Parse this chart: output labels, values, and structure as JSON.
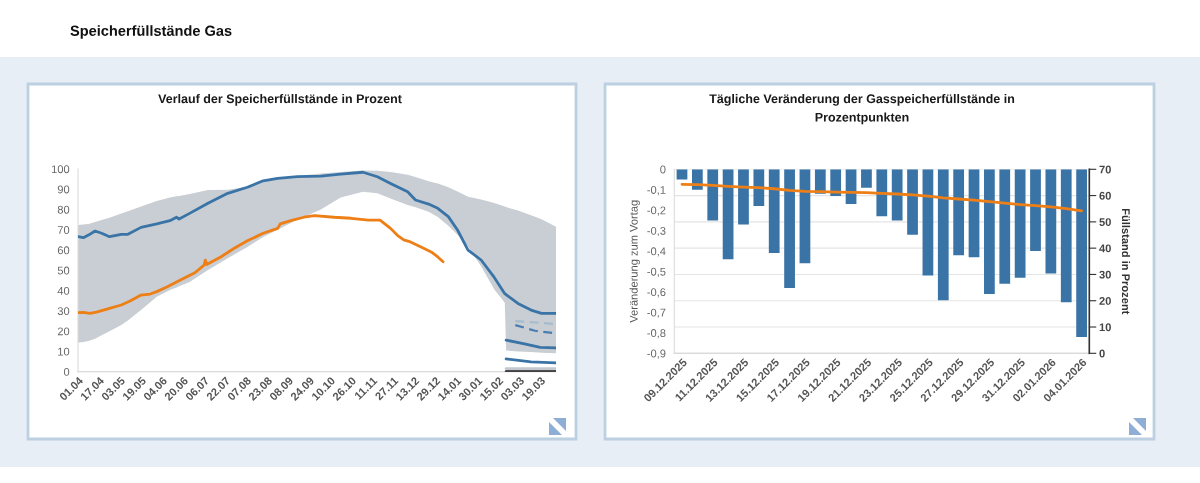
{
  "chart_data": [
    {
      "type": "line",
      "title": "Verlauf der Speicherfüllstände in Prozent",
      "annotations": [
        "Speicherfüllstände Gas"
      ],
      "xlim": [
        "2025-04-01",
        "2026-03-31"
      ],
      "xticks": [
        {
          "value": "2025-04-01",
          "label": "01.04"
        },
        {
          "value": "2025-04-17",
          "label": "17.04"
        },
        {
          "value": "2025-05-03",
          "label": "03.05"
        },
        {
          "value": "2025-05-19",
          "label": "19.05"
        },
        {
          "value": "2025-06-04",
          "label": "04.06"
        },
        {
          "value": "2025-06-20",
          "label": "20.06"
        },
        {
          "value": "2025-07-06",
          "label": "06.07"
        },
        {
          "value": "2025-07-22",
          "label": "22.07"
        },
        {
          "value": "2025-08-07",
          "label": "07.08"
        },
        {
          "value": "2025-08-23",
          "label": "23.08"
        },
        {
          "value": "2025-09-08",
          "label": "08.09"
        },
        {
          "value": "2025-09-24",
          "label": "24.09"
        },
        {
          "value": "2025-10-10",
          "label": "10.10"
        },
        {
          "value": "2025-10-26",
          "label": "26.10"
        },
        {
          "value": "2025-11-11",
          "label": "11.11"
        },
        {
          "value": "2025-11-27",
          "label": "27.11"
        },
        {
          "value": "2025-12-13",
          "label": "13.12"
        },
        {
          "value": "2025-12-29",
          "label": "29.12"
        },
        {
          "value": "2026-01-14",
          "label": "14.01"
        },
        {
          "value": "2026-01-30",
          "label": "30.01"
        },
        {
          "value": "2026-02-15",
          "label": "15.02"
        },
        {
          "value": "2026-03-03",
          "label": "03.03"
        },
        {
          "value": "2026-03-19",
          "label": "19.03"
        }
      ],
      "ylim": [
        0,
        100
      ],
      "yticks": [
        0,
        10,
        20,
        30,
        40,
        50,
        60,
        70,
        80,
        90,
        100
      ],
      "series": [
        {
          "color": "#3a74a7",
          "x": [
            "2025-04-01",
            "2025-04-05",
            "2025-04-09",
            "2025-04-14",
            "2025-04-19",
            "2025-04-25",
            "2025-05-04",
            "2025-05-09",
            "2025-05-19",
            "2025-05-31",
            "2025-06-10",
            "2025-06-15",
            "2025-06-17",
            "2025-06-25",
            "2025-07-09",
            "2025-07-24",
            "2025-08-08",
            "2025-08-20",
            "2025-08-31",
            "2025-09-15",
            "2025-10-03",
            "2025-10-18",
            "2025-11-04",
            "2025-11-15",
            "2025-11-25",
            "2025-12-08",
            "2025-12-14",
            "2025-12-24",
            "2025-12-31",
            "2026-01-08",
            "2026-01-15",
            "2026-01-23",
            "2026-02-02",
            "2026-02-12",
            "2026-02-20",
            "2026-02-21",
            "2026-02-22",
            "2026-03-02",
            "2026-03-12",
            "2026-03-20",
            "2026-03-31"
          ],
          "values": [
            66.6,
            66.1,
            67.4,
            69.4,
            68.3,
            66.6,
            67.8,
            67.8,
            71.2,
            72.9,
            74.5,
            76.2,
            75.3,
            78.1,
            83.1,
            88.0,
            91.0,
            94.2,
            95.4,
            96.2,
            96.5,
            97.5,
            98.4,
            96.2,
            92.9,
            88.8,
            84.7,
            82.7,
            80.6,
            76.5,
            69.9,
            60.0,
            55.1,
            46.5,
            38.5,
            38.0,
            37.5,
            33.7,
            30.4,
            28.8,
            28.8
          ],
          "lower": [
            14.3,
            14.7,
            15.1,
            16.2,
            18.0,
            19.9,
            23.0,
            25.3,
            30.4,
            37.0,
            40.3,
            41.6,
            42.1,
            44.2,
            50.2,
            56.0,
            61.5,
            66.5,
            70.0,
            75.0,
            80.0,
            86.0,
            88.8,
            88.0,
            85.5,
            82.2,
            81.1,
            78.9,
            76.3,
            72.0,
            67.6,
            61.7,
            52.0,
            40.5,
            34.0,
            10.4,
            10.4,
            10.0,
            9.7,
            9.4,
            9.1
          ],
          "upper": [
            72.4,
            72.6,
            72.9,
            73.8,
            74.8,
            76.0,
            78.0,
            79.2,
            81.5,
            84.2,
            85.9,
            86.5,
            86.7,
            87.7,
            89.6,
            89.8,
            91.3,
            93.8,
            95.1,
            96.6,
            97.8,
            98.5,
            99.2,
            99.1,
            98.5,
            97.2,
            96.0,
            94.0,
            92.8,
            91.0,
            88.9,
            86.3,
            85.0,
            83.2,
            81.5,
            81.3,
            81.0,
            79.5,
            77.2,
            75.2,
            71.5
          ]
        },
        {
          "color": "#c3c9ce",
          "x": [
            "2026-02-21",
            "2026-03-31"
          ],
          "values": [
            1.5,
            1.5
          ]
        },
        {
          "color": "#111111",
          "x": [
            "2026-02-21",
            "2026-03-31"
          ],
          "values": [
            0,
            0
          ]
        },
        {
          "color": "#ee7f16",
          "x": [
            "2025-04-01",
            "2025-04-05",
            "2025-04-10",
            "2025-04-15",
            "2025-04-25",
            "2025-05-04",
            "2025-05-11",
            "2025-05-19",
            "2025-05-26",
            "2025-05-31",
            "2025-06-08",
            "2025-06-18",
            "2025-06-29",
            "2025-07-06",
            "2025-07-07",
            "2025-07-08",
            "2025-07-19",
            "2025-07-29",
            "2025-08-08",
            "2025-08-20",
            "2025-08-31",
            "2025-09-02",
            "2025-09-10",
            "2025-09-20",
            "2025-09-28",
            "2025-10-13",
            "2025-10-26",
            "2025-11-08",
            "2025-11-17",
            "2025-11-25",
            "2025-11-30",
            "2025-12-05",
            "2025-12-09",
            "2025-12-19",
            "2025-12-26",
            "2025-12-31",
            "2026-01-04"
          ],
          "values": [
            29.1,
            29.3,
            28.8,
            29.4,
            31.2,
            32.9,
            35.0,
            37.8,
            38.3,
            39.5,
            41.9,
            45.2,
            48.8,
            52.6,
            55.0,
            52.9,
            56.7,
            60.9,
            64.6,
            68.3,
            70.7,
            72.9,
            74.5,
            76.2,
            77.0,
            76.2,
            75.7,
            74.8,
            74.8,
            70.7,
            67.4,
            65.0,
            64.3,
            61.3,
            59.1,
            56.6,
            54.2
          ]
        },
        {
          "color": "#a7bbcd",
          "line_style": "dashed",
          "x": [
            "2026-02-28",
            "2026-03-31"
          ],
          "values": [
            25.0,
            23.5
          ]
        },
        {
          "color": "#4a7eb0",
          "line_style": "dashed",
          "x": [
            "2026-02-28",
            "2026-03-15",
            "2026-03-31"
          ],
          "values": [
            23.0,
            20.2,
            18.9
          ]
        },
        {
          "color": "#3a74a7",
          "x": [
            "2026-02-21",
            "2026-03-07",
            "2026-03-19",
            "2026-03-31"
          ],
          "values": [
            15.6,
            13.7,
            12.0,
            11.8
          ]
        },
        {
          "color": "#3a74a7",
          "x": [
            "2026-02-21",
            "2026-03-12",
            "2026-03-31"
          ],
          "values": [
            6.3,
            4.9,
            4.4
          ]
        }
      ]
    },
    {
      "type": "bar",
      "title": "Tägliche Veränderung der Gasspeicherfüllstände in\nProzentpunkten",
      "categories": [
        "09.12.2025",
        null,
        "11.12.2025",
        null,
        "13.12.2025",
        null,
        "15.12.2025",
        null,
        "17.12.2025",
        null,
        "19.12.2025",
        null,
        "21.12.2025",
        null,
        "23.12.2025",
        null,
        "25.12.2025",
        null,
        "27.12.2025",
        null,
        "29.12.2025",
        null,
        "31.12.2025",
        null,
        "02.01.2026",
        null,
        "04.01.2026"
      ],
      "ylabel": "Veränderung zum Vortag",
      "y2label": "Füllstand in Prozent",
      "ylim": [
        -0.9,
        0
      ],
      "yticks": [
        0,
        {
          "value": -0.1,
          "label": "-0,1"
        },
        {
          "value": -0.2,
          "label": "-0,2"
        },
        {
          "value": -0.3,
          "label": "-0,3"
        },
        {
          "value": -0.4,
          "label": "-0,4"
        },
        {
          "value": -0.5,
          "label": "-0,5"
        },
        {
          "value": -0.6,
          "label": "-0,6"
        },
        {
          "value": -0.7,
          "label": "-0,7"
        },
        {
          "value": -0.8,
          "label": "-0,8"
        },
        {
          "value": -0.9,
          "label": "-0,9"
        }
      ],
      "y2lim": [
        0,
        70
      ],
      "y2ticks": [
        0,
        10,
        20,
        30,
        40,
        50,
        60,
        70
      ],
      "grid": "y2",
      "series": [
        {
          "color": "#3a74a7",
          "values": [
            -0.05,
            -0.1,
            -0.25,
            -0.44,
            -0.27,
            -0.18,
            -0.41,
            -0.58,
            -0.46,
            -0.12,
            -0.13,
            -0.17,
            -0.09,
            -0.23,
            -0.25,
            -0.32,
            -0.52,
            -0.64,
            -0.42,
            -0.43,
            -0.61,
            -0.56,
            -0.53,
            -0.4,
            -0.51,
            -0.65,
            -0.82
          ]
        },
        {
          "type": "line",
          "axis": "y2",
          "color": "#ee7f16",
          "values": [
            64.3,
            64.2,
            63.9,
            63.5,
            63.2,
            63.0,
            62.6,
            62.0,
            61.6,
            61.5,
            61.3,
            61.2,
            61.1,
            60.8,
            60.6,
            60.3,
            59.8,
            59.1,
            58.7,
            58.3,
            57.7,
            57.1,
            56.6,
            56.2,
            55.7,
            55.0,
            54.2
          ]
        }
      ]
    }
  ]
}
